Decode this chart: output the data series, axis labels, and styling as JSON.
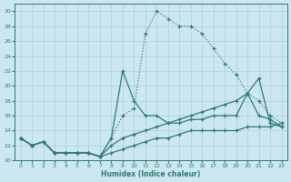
{
  "xlabel": "Humidex (Indice chaleur)",
  "bg_color": "#cce8ee",
  "grid_color": "#aad0d8",
  "line_color": "#2a7a7a",
  "xlim": [
    -0.5,
    23.5
  ],
  "ylim": [
    10,
    31
  ],
  "xticks": [
    0,
    1,
    2,
    3,
    4,
    5,
    6,
    7,
    8,
    9,
    10,
    11,
    12,
    13,
    14,
    15,
    16,
    17,
    18,
    19,
    20,
    21,
    22,
    23
  ],
  "yticks": [
    10,
    12,
    14,
    16,
    18,
    20,
    22,
    24,
    26,
    28,
    30
  ],
  "curve_dotted_x": [
    0,
    1,
    2,
    3,
    4,
    5,
    6,
    7,
    8,
    9,
    10,
    11,
    12,
    13,
    14,
    15,
    16,
    17,
    18,
    19,
    20,
    21,
    22,
    23
  ],
  "curve_dotted_y": [
    13,
    12,
    12.5,
    11,
    11,
    11,
    11,
    10.5,
    13,
    16,
    17,
    27,
    30,
    29,
    28,
    28,
    27,
    25,
    23,
    21.5,
    19,
    18,
    16,
    15
  ],
  "curve_solid1_x": [
    0,
    1,
    2,
    3,
    4,
    5,
    6,
    7,
    8,
    9,
    10,
    11,
    12,
    13,
    14,
    15,
    16,
    17,
    18,
    19,
    20,
    21,
    22,
    23
  ],
  "curve_solid1_y": [
    13,
    12,
    12.5,
    11,
    11,
    11,
    11,
    10.5,
    13,
    22,
    18,
    16,
    16,
    15,
    15,
    15.5,
    15.5,
    16,
    16,
    16,
    19,
    16,
    15.5,
    14.5
  ],
  "curve_solid2_x": [
    0,
    1,
    2,
    3,
    4,
    5,
    6,
    7,
    8,
    9,
    10,
    11,
    12,
    13,
    14,
    15,
    16,
    17,
    18,
    19,
    20,
    21,
    22,
    23
  ],
  "curve_solid2_y": [
    13,
    12,
    12.5,
    11,
    11,
    11,
    11,
    10.5,
    12,
    13,
    13.5,
    14,
    14.5,
    15,
    15.5,
    16,
    16.5,
    17,
    17.5,
    18,
    19,
    21,
    15,
    14.5
  ],
  "curve_solid3_x": [
    0,
    1,
    2,
    3,
    4,
    5,
    6,
    7,
    8,
    9,
    10,
    11,
    12,
    13,
    14,
    15,
    16,
    17,
    18,
    19,
    20,
    21,
    22,
    23
  ],
  "curve_solid3_y": [
    13,
    12,
    12.5,
    11,
    11,
    11,
    11,
    10.5,
    11,
    11.5,
    12,
    12.5,
    13,
    13,
    13.5,
    14,
    14,
    14,
    14,
    14,
    14.5,
    14.5,
    14.5,
    15
  ]
}
